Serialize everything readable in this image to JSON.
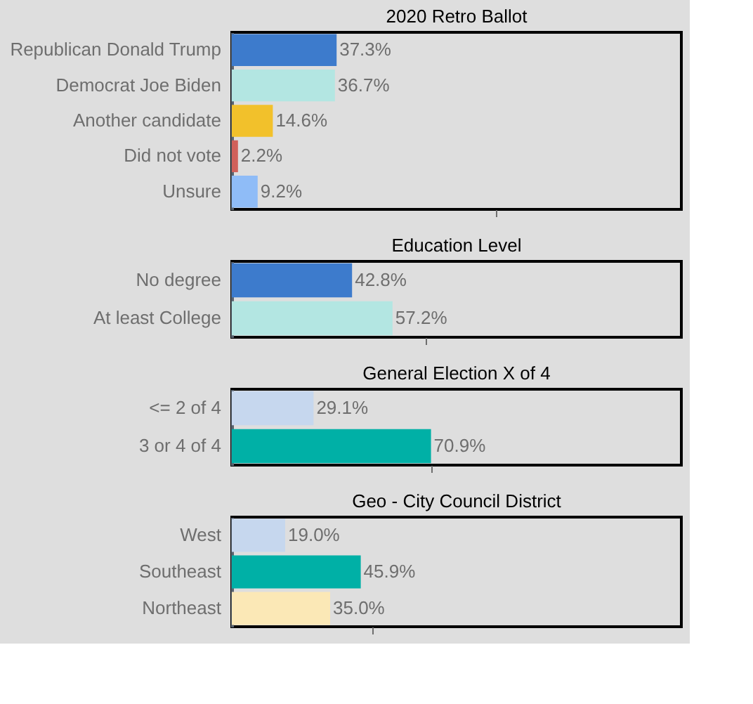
{
  "chart_data": [
    {
      "type": "bar",
      "orientation": "horizontal",
      "title": "2020 Retro Ballot",
      "categories": [
        "Republican Donald Trump",
        "Democrat Joe Biden",
        "Another candidate",
        "Did not vote",
        "Unsure"
      ],
      "values": [
        37.3,
        36.7,
        14.6,
        2.2,
        9.2
      ],
      "colors": [
        "#3d7bcc",
        "#b3e6e2",
        "#f2c12b",
        "#d0605a",
        "#8fbcf7"
      ],
      "value_labels": [
        "37.3%",
        "36.7%",
        "14.6%",
        "2.2%",
        "9.2%"
      ],
      "xlim": [
        0,
        160
      ],
      "xticks": [
        {
          "value": 94,
          "label": null
        }
      ],
      "tick_labels": "y",
      "grid": false,
      "legend": false
    },
    {
      "type": "bar",
      "orientation": "horizontal",
      "title": "Education Level",
      "categories": [
        "No degree",
        "At least College"
      ],
      "values": [
        42.8,
        57.2
      ],
      "colors": [
        "#3d7bcc",
        "#b3e6e2"
      ],
      "value_labels": [
        "42.8%",
        "57.2%"
      ],
      "xlim": [
        0,
        160
      ],
      "xticks": [
        {
          "value": 69,
          "label": null
        }
      ],
      "tick_labels": "y",
      "grid": false,
      "legend": false
    },
    {
      "type": "bar",
      "orientation": "horizontal",
      "title": "General Election X of 4",
      "categories": [
        "<= 2 of 4",
        "3 or 4 of 4"
      ],
      "values": [
        29.1,
        70.9
      ],
      "colors": [
        "#c6d7ee",
        "#00b0a6"
      ],
      "value_labels": [
        "29.1%",
        "70.9%"
      ],
      "xlim": [
        0,
        160
      ],
      "xticks": [
        {
          "value": 71,
          "label": null
        }
      ],
      "tick_labels": "y",
      "grid": false,
      "legend": false
    },
    {
      "type": "bar",
      "orientation": "horizontal",
      "title": "Geo - City Council District",
      "categories": [
        "West",
        "Southeast",
        "Northeast"
      ],
      "values": [
        19.0,
        45.9,
        35.0
      ],
      "colors": [
        "#c6d7ee",
        "#00b0a6",
        "#fbe8b6"
      ],
      "value_labels": [
        "19.0%",
        "45.9%",
        "35.0%"
      ],
      "xlim": [
        0,
        160
      ],
      "xticks": [
        {
          "value": 50,
          "label": null
        }
      ],
      "tick_labels": "y",
      "grid": false,
      "legend": false
    }
  ]
}
